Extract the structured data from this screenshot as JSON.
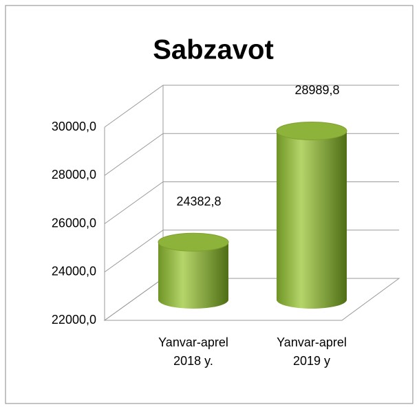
{
  "chart_data": {
    "type": "bar",
    "title": "Sabzavot",
    "categories": [
      "Yanvar-aprel 2018 y.",
      "Yanvar-aprel 2019 y"
    ],
    "values": [
      24382.8,
      28989.8
    ],
    "value_labels": [
      "24382,8",
      "28989,8"
    ],
    "color": "#8db33a",
    "ylim": [
      22000,
      30000
    ],
    "yticks": [
      {
        "value": 22000,
        "label": "22000,0"
      },
      {
        "value": 24000,
        "label": "24000,0"
      },
      {
        "value": 26000,
        "label": "26000,0"
      },
      {
        "value": 28000,
        "label": "28000,0"
      },
      {
        "value": 30000,
        "label": "30000,0"
      }
    ],
    "grid": true
  }
}
